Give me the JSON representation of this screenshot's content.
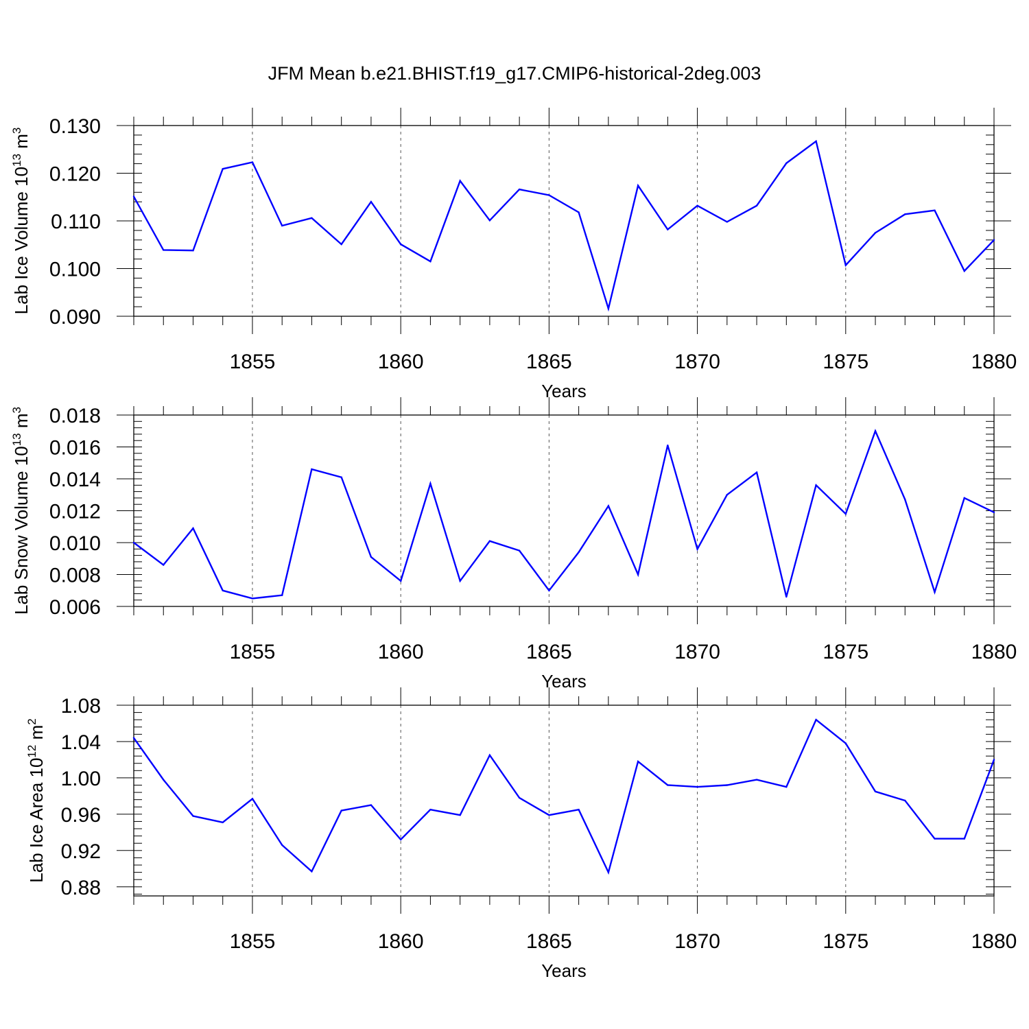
{
  "title": "JFM Mean b.e21.BHIST.f19_g17.CMIP6-historical-2deg.003",
  "colors": {
    "line": "#0000ff",
    "axis": "#000000",
    "grid": "#555555"
  },
  "chart_data": [
    {
      "type": "line",
      "ylabel": "Lab Ice Volume 10",
      "ylabel_exp": "13",
      "ylabel_unit": " m",
      "ylabel_unit_exp": "3",
      "xlabel": "Years",
      "xlim": [
        1851,
        1880
      ],
      "ylim": [
        0.09,
        0.13
      ],
      "yticks": [
        0.09,
        0.1,
        0.11,
        0.12,
        0.13
      ],
      "ytick_labels": [
        "0.090",
        "0.100",
        "0.110",
        "0.120",
        "0.130"
      ],
      "xticks": [
        1855,
        1860,
        1865,
        1870,
        1875,
        1880
      ],
      "xtick_labels": [
        "1855",
        "1860",
        "1865",
        "1870",
        "1875",
        "1880"
      ],
      "grid": "vertical dashed at major x ticks",
      "x": [
        1851,
        1852,
        1853,
        1854,
        1855,
        1856,
        1857,
        1858,
        1859,
        1860,
        1861,
        1862,
        1863,
        1864,
        1865,
        1866,
        1867,
        1868,
        1869,
        1870,
        1871,
        1872,
        1873,
        1874,
        1875,
        1876,
        1877,
        1878,
        1879,
        1880
      ],
      "values": [
        0.1151,
        0.1039,
        0.1038,
        0.1209,
        0.1223,
        0.109,
        0.1106,
        0.1051,
        0.114,
        0.1051,
        0.1015,
        0.1184,
        0.1101,
        0.1166,
        0.1154,
        0.1118,
        0.0916,
        0.1174,
        0.1082,
        0.1132,
        0.1098,
        0.1132,
        0.1221,
        0.1267,
        0.1007,
        0.1075,
        0.1114,
        0.1122,
        0.0995,
        0.106
      ]
    },
    {
      "type": "line",
      "ylabel": "Lab Snow Volume 10",
      "ylabel_exp": "13",
      "ylabel_unit": " m",
      "ylabel_unit_exp": "3",
      "xlabel": "Years",
      "xlim": [
        1851,
        1880
      ],
      "ylim": [
        0.006,
        0.018
      ],
      "yticks": [
        0.006,
        0.008,
        0.01,
        0.012,
        0.014,
        0.016,
        0.018
      ],
      "ytick_labels": [
        "0.006",
        "0.008",
        "0.010",
        "0.012",
        "0.014",
        "0.016",
        "0.018"
      ],
      "xticks": [
        1855,
        1860,
        1865,
        1870,
        1875,
        1880
      ],
      "xtick_labels": [
        "1855",
        "1860",
        "1865",
        "1870",
        "1875",
        "1880"
      ],
      "grid": "vertical dashed at major x ticks",
      "x": [
        1851,
        1852,
        1853,
        1854,
        1855,
        1856,
        1857,
        1858,
        1859,
        1860,
        1861,
        1862,
        1863,
        1864,
        1865,
        1866,
        1867,
        1868,
        1869,
        1870,
        1871,
        1872,
        1873,
        1874,
        1875,
        1876,
        1877,
        1878,
        1879,
        1880
      ],
      "values": [
        0.01,
        0.0086,
        0.0109,
        0.007,
        0.0065,
        0.0067,
        0.0146,
        0.0141,
        0.0091,
        0.0076,
        0.0137,
        0.0076,
        0.0101,
        0.0095,
        0.007,
        0.0094,
        0.0123,
        0.008,
        0.0161,
        0.0096,
        0.013,
        0.0144,
        0.0066,
        0.0136,
        0.0118,
        0.017,
        0.0127,
        0.0069,
        0.0128,
        0.0119
      ]
    },
    {
      "type": "line",
      "ylabel": "Lab Ice Area 10",
      "ylabel_exp": "12",
      "ylabel_unit": " m",
      "ylabel_unit_exp": "2",
      "xlabel": "Years",
      "xlim": [
        1851,
        1880
      ],
      "ylim": [
        0.87,
        1.08
      ],
      "yticks": [
        0.88,
        0.92,
        0.96,
        1.0,
        1.04,
        1.08
      ],
      "ytick_labels": [
        "0.88",
        "0.92",
        "0.96",
        "1.00",
        "1.04",
        "1.08"
      ],
      "xticks": [
        1855,
        1860,
        1865,
        1870,
        1875,
        1880
      ],
      "xtick_labels": [
        "1855",
        "1860",
        "1865",
        "1870",
        "1875",
        "1880"
      ],
      "grid": "vertical dashed at major x ticks",
      "x": [
        1851,
        1852,
        1853,
        1854,
        1855,
        1856,
        1857,
        1858,
        1859,
        1860,
        1861,
        1862,
        1863,
        1864,
        1865,
        1866,
        1867,
        1868,
        1869,
        1870,
        1871,
        1872,
        1873,
        1874,
        1875,
        1876,
        1877,
        1878,
        1879,
        1880
      ],
      "values": [
        1.044,
        0.998,
        0.958,
        0.951,
        0.977,
        0.926,
        0.897,
        0.964,
        0.97,
        0.932,
        0.965,
        0.959,
        1.025,
        0.978,
        0.959,
        0.965,
        0.896,
        1.018,
        0.992,
        0.99,
        0.992,
        0.998,
        0.99,
        1.064,
        1.038,
        0.985,
        0.975,
        0.933,
        0.933,
        1.02
      ]
    }
  ]
}
